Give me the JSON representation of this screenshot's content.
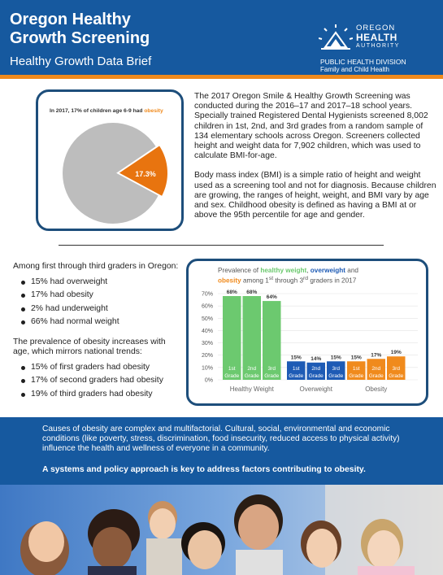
{
  "header": {
    "title_line1": "Oregon Healthy",
    "title_line2": "Growth Screening",
    "subtitle": "Healthy Growth Data Brief",
    "logo_line1": "OREGON",
    "logo_line2": "HEALTH",
    "logo_line3": "AUTHORITY",
    "division_line1": "PUBLIC HEALTH DIVISION",
    "division_line2": "Family and Child Health"
  },
  "pie": {
    "caption_prefix": "In 2017, 17% of children age 6-9 had ",
    "caption_highlight": "obesity",
    "slice_label": "17.3%",
    "slice_value": 17.3,
    "colors": {
      "slice": "#e8740f",
      "rest": "#bdbdbd"
    }
  },
  "intro": {
    "p1": "The 2017 Oregon Smile & Healthy Growth Screening was conducted during the 2016–17 and 2017–18 school years. Specially trained Registered Dental Hygienists screened 8,002 children in 1st, 2nd, and 3rd grades from a random sample of 134 elementary schools across Oregon. Screeners collected height and weight data for 7,902 children, which was used to calculate BMI-for-age.",
    "p2": "Body mass index (BMI) is a simple ratio of height and weight used as a screening tool and not for diagnosis. Because children are growing, the ranges of height, weight, and BMI  vary by age and sex. Childhood obesity is defined as having a BMI at or above the 95th percentile for age and gender."
  },
  "stats": {
    "intro": "Among first through third graders in Oregon:",
    "items": [
      "15% had overweight",
      "17% had obesity",
      "2% had underweight",
      "66% had normal weight"
    ],
    "trend_intro": "The prevalence of obesity increases with age, which mirrors national trends:",
    "trend_items": [
      "15% of first graders had obesity",
      "17% of second graders had obesity",
      "19% of third graders had obesity"
    ]
  },
  "chart_title": {
    "t1": "Prevalence of ",
    "t2": "healthy weight",
    "t3": ", ",
    "t4": "overweight",
    "t5": " and",
    "t6": "obesity",
    "t7": " among 1",
    "t7sup": "st",
    "t8": " through 3",
    "t8sup": "rd",
    "t9": " graders in 2017"
  },
  "chart_data": {
    "type": "bar",
    "title": "Prevalence of healthy weight, overweight and obesity among 1st through 3rd graders in 2017",
    "ylim": [
      0,
      70
    ],
    "yticks": [
      "0%",
      "10%",
      "20%",
      "30%",
      "40%",
      "50%",
      "60%",
      "70%"
    ],
    "groups": [
      "Healthy Weight",
      "Overweight",
      "Obesity"
    ],
    "bar_labels": [
      [
        "1st",
        "Grade"
      ],
      [
        "2nd",
        "Grade"
      ],
      [
        "3rd",
        "Grade"
      ]
    ],
    "series": [
      {
        "group": "Healthy Weight",
        "values": [
          68,
          68,
          64
        ],
        "labels": [
          "68%",
          "68%",
          "64%"
        ],
        "color": "#6cc96f"
      },
      {
        "group": "Overweight",
        "values": [
          15,
          14,
          15
        ],
        "labels": [
          "15%",
          "14%",
          "15%"
        ],
        "color": "#1e5bb5"
      },
      {
        "group": "Obesity",
        "values": [
          15,
          17,
          19
        ],
        "labels": [
          "15%",
          "17%",
          "19%"
        ],
        "color": "#f08a1c"
      }
    ],
    "grid": true
  },
  "band": {
    "text1": "Causes of obesity are complex and multifactorial. Cultural, social, environmental and economic conditions (like poverty, stress, discrimination, food insecurity, reduced access to physical activity) influence the health and wellness of everyone in a community.",
    "text2": "A systems and policy approach is key to address factors contributing to obesity."
  }
}
